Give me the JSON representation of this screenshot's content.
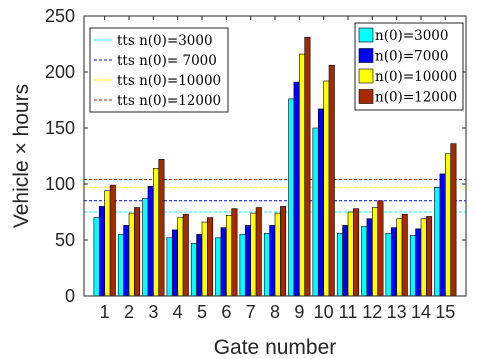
{
  "chart_data": {
    "type": "bar",
    "xlabel": "Gate number",
    "ylabel": "Vehicle × hours",
    "ylim": [
      0,
      250
    ],
    "yticks": [
      0,
      50,
      100,
      150,
      200,
      250
    ],
    "categories": [
      "1",
      "2",
      "3",
      "4",
      "5",
      "6",
      "7",
      "8",
      "9",
      "10",
      "11",
      "12",
      "13",
      "14",
      "15"
    ],
    "grid": false,
    "legend_left_placement": "top-left",
    "legend_right_placement": "top-right",
    "series": [
      {
        "name": "n(0)=3000",
        "color": "#00FFFF",
        "values": [
          70,
          55,
          87,
          52,
          47,
          52,
          55,
          56,
          176,
          150,
          56,
          62,
          56,
          54,
          97
        ]
      },
      {
        "name": "n(0)=7000",
        "color": "#0000FF",
        "values": [
          80,
          63,
          98,
          59,
          55,
          61,
          63,
          63,
          191,
          167,
          63,
          69,
          61,
          60,
          109
        ]
      },
      {
        "name": "n(0)=10000",
        "color": "#FFFF00",
        "values": [
          94,
          74,
          114,
          70,
          66,
          72,
          74,
          74,
          216,
          192,
          75,
          79,
          69,
          69,
          127
        ]
      },
      {
        "name": "n(0)=12000",
        "color": "#A52A00",
        "values": [
          99,
          79,
          122,
          73,
          70,
          78,
          79,
          80,
          231,
          206,
          78,
          85,
          73,
          71,
          136
        ]
      }
    ],
    "reference_lines": [
      {
        "name": "tts n(0)=3000",
        "value": 75,
        "color": "#00FFFF"
      },
      {
        "name": "tts n(0)= 7000",
        "value": 85,
        "color": "#0000FF"
      },
      {
        "name": "tts n(0)=10000",
        "value": 97,
        "color": "#FFFF00"
      },
      {
        "name": "tts n(0)=12000",
        "value": 104,
        "color": "#A52A00"
      }
    ]
  }
}
